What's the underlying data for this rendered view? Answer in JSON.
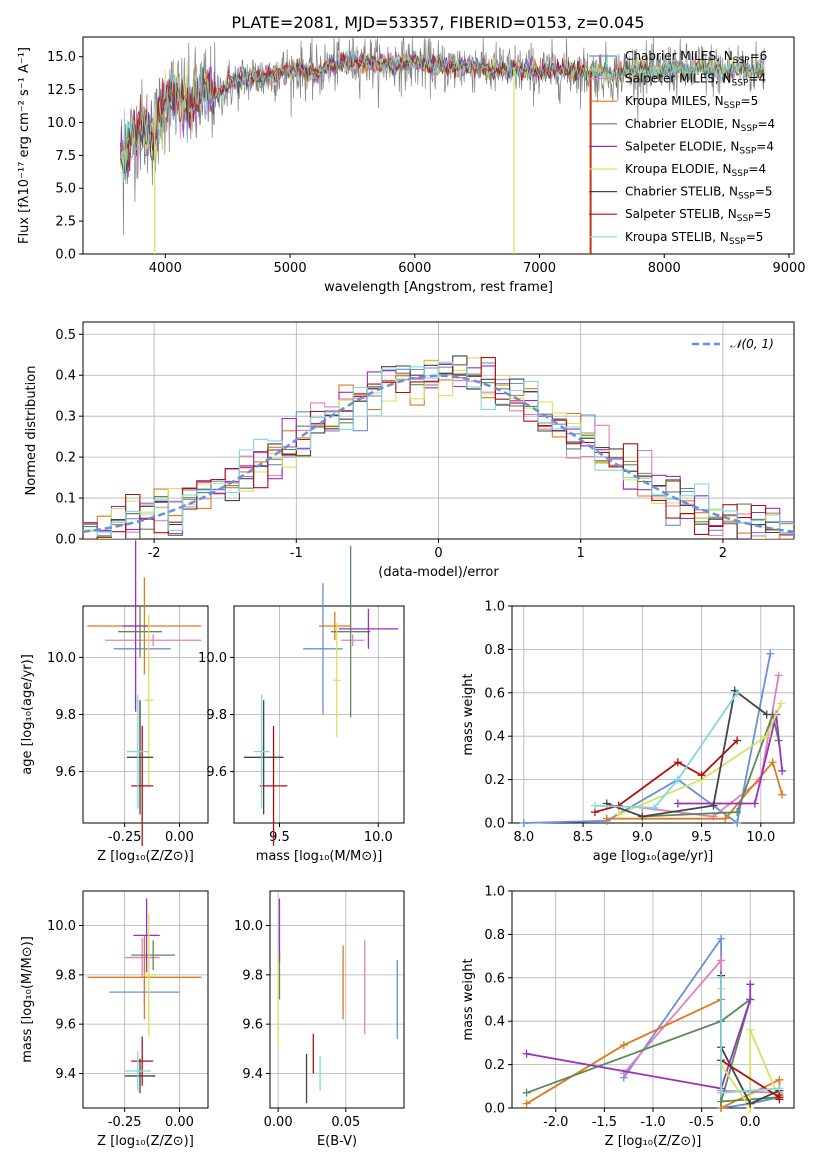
{
  "figure_title": "PLATE=2081, MJD=53357, FIBERID=0153, z=0.045",
  "colors": {
    "Chabrier MILES": "#6a8fdb",
    "Salpeter MILES": "#e27fc0",
    "Kroupa MILES": "#e07a1c",
    "Chabrier ELODIE": "#5a8a5a",
    "Salpeter ELODIE": "#9b30c0",
    "Kroupa ELODIE": "#d8e060",
    "Chabrier STELIB": "#444444",
    "Salpeter STELIB": "#b01010",
    "Kroupa STELIB": "#80d8dd"
  },
  "chart_data": [
    {
      "id": "spectrum",
      "type": "line",
      "title": "PLATE=2081, MJD=53357, FIBERID=0153, z=0.045",
      "xlabel": "wavelength [Angstrom, rest frame]",
      "ylabel": "Flux [fλ10⁻¹⁷ erg cm⁻² s⁻¹ A⁻¹]",
      "xlim": [
        3340,
        9040
      ],
      "ylim": [
        0,
        16.5
      ],
      "xticks": [
        4000,
        5000,
        6000,
        7000,
        8000,
        9000
      ],
      "yticks": [
        0.0,
        2.5,
        5.0,
        7.5,
        10.0,
        12.5,
        15.0
      ],
      "legend_position": "upper-right",
      "observed_flux": {
        "x": [
          3640,
          3700,
          3800,
          3900,
          4000,
          4100,
          4200,
          4300,
          4400,
          4500,
          4600,
          4700,
          4800,
          4900,
          5000,
          5100,
          5200,
          5300,
          5400,
          5500,
          5600,
          5700,
          5800,
          5900,
          6000,
          6100,
          6200,
          6300,
          6400,
          6500,
          6600,
          6700,
          6800,
          6900,
          7000,
          7100,
          7200,
          7300,
          7400,
          7500,
          7600,
          7700,
          7800,
          7900,
          8000,
          8100,
          8200,
          8300,
          8400,
          8500,
          8600,
          8700,
          8800
        ],
        "y": [
          7.5,
          8.2,
          9.5,
          9.0,
          11.5,
          12.0,
          11.2,
          12.5,
          12.0,
          12.8,
          13.2,
          13.5,
          13.4,
          13.8,
          13.9,
          14.0,
          13.6,
          14.3,
          14.5,
          14.6,
          14.7,
          14.5,
          14.4,
          14.6,
          14.5,
          14.4,
          14.3,
          14.2,
          14.2,
          14.4,
          14.0,
          14.1,
          14.0,
          14.0,
          13.8,
          13.9,
          14.0,
          13.9,
          13.7,
          13.8,
          13.6,
          13.9,
          14.1,
          13.7,
          14.0,
          14.1,
          13.9,
          14.2,
          14.0,
          13.9,
          14.2,
          14.0,
          14.1
        ]
      },
      "series": [
        {
          "name": "Chabrier MILES, N_SSP=6",
          "label_main": "Chabrier MILES, N",
          "label_sub": "SSP",
          "label_tail": "=6"
        },
        {
          "name": "Salpeter MILES, N_SSP=4",
          "label_main": "Salpeter MILES, N",
          "label_sub": "SSP",
          "label_tail": "=4"
        },
        {
          "name": "Kroupa MILES, N_SSP=5",
          "label_main": "Kroupa MILES, N",
          "label_sub": "SSP",
          "label_tail": "=5"
        },
        {
          "name": "Chabrier ELODIE, N_SSP=4",
          "label_main": "Chabrier ELODIE, N",
          "label_sub": "SSP",
          "label_tail": "=4"
        },
        {
          "name": "Salpeter ELODIE, N_SSP=4",
          "label_main": "Salpeter ELODIE, N",
          "label_sub": "SSP",
          "label_tail": "=4"
        },
        {
          "name": "Kroupa ELODIE, N_SSP=4",
          "label_main": "Kroupa ELODIE, N",
          "label_sub": "SSP",
          "label_tail": "=4"
        },
        {
          "name": "Chabrier STELIB, N_SSP=5",
          "label_main": "Chabrier STELIB, N",
          "label_sub": "SSP",
          "label_tail": "=5"
        },
        {
          "name": "Salpeter STELIB, N_SSP=5",
          "label_main": "Salpeter STELIB, N",
          "label_sub": "SSP",
          "label_tail": "=5"
        },
        {
          "name": "Kroupa STELIB, N_SSP=5",
          "label_main": "Kroupa STELIB, N",
          "label_sub": "SSP",
          "label_tail": "=5"
        }
      ]
    },
    {
      "id": "residuals",
      "type": "line",
      "xlabel": "(data-model)/error",
      "ylabel": "Normed distribution",
      "xlim": [
        -2.5,
        2.5
      ],
      "ylim": [
        0,
        0.53
      ],
      "xticks": [
        -2,
        -1,
        0,
        1,
        2
      ],
      "yticks": [
        0.0,
        0.1,
        0.2,
        0.3,
        0.4,
        0.5
      ],
      "grid": true,
      "legend_position": "upper-right",
      "reference_curve": {
        "name": "N(0,1)",
        "label": "𝒩(0, 1)",
        "mean": 0,
        "sigma": 1
      },
      "histogram": {
        "bin_width": 0.1,
        "range": [
          -2.5,
          2.5
        ]
      }
    },
    {
      "id": "age_vs_Z",
      "type": "scatter",
      "xlabel": "Z [log₁₀(Z/Z⊙)]",
      "ylabel": "age  [log₁₀(age/yr)]",
      "xlim": [
        -0.44,
        0.13
      ],
      "ylim": [
        9.42,
        10.18
      ],
      "xticks": [
        -0.25,
        0.0
      ],
      "yticks": [
        9.6,
        9.8,
        10.0
      ],
      "grid": true,
      "points": [
        {
          "series": "Chabrier MILES",
          "x": -0.17,
          "y": 10.03,
          "xerr": 0.13,
          "yerr": 0.0
        },
        {
          "series": "Salpeter MILES",
          "x": -0.12,
          "y": 10.06,
          "xerr": 0.22,
          "yerr": 0.02
        },
        {
          "series": "Kroupa MILES",
          "x": -0.16,
          "y": 10.11,
          "xerr": 0.26,
          "yerr": 0.17
        },
        {
          "series": "Chabrier ELODIE",
          "x": -0.18,
          "y": 10.09,
          "xerr": 0.1,
          "yerr": 0.09
        },
        {
          "series": "Salpeter ELODIE",
          "x": -0.2,
          "y": 10.11,
          "xerr": 0.06,
          "yerr": 0.3
        },
        {
          "series": "Kroupa ELODIE",
          "x": -0.14,
          "y": 9.85,
          "xerr": 0.02,
          "yerr": 0.3
        },
        {
          "series": "Chabrier STELIB",
          "x": -0.18,
          "y": 9.65,
          "xerr": 0.06,
          "yerr": 0.2
        },
        {
          "series": "Salpeter STELIB",
          "x": -0.17,
          "y": 9.55,
          "xerr": 0.05,
          "yerr": 0.21
        },
        {
          "series": "Kroupa STELIB",
          "x": -0.19,
          "y": 9.67,
          "xerr": 0.05,
          "yerr": 0.2
        }
      ]
    },
    {
      "id": "age_vs_mass",
      "type": "scatter",
      "xlabel": "mass [log₁₀(M/M⊙)]",
      "ylabel": "",
      "xlim": [
        9.27,
        10.13
      ],
      "ylim": [
        9.42,
        10.18
      ],
      "xticks": [
        9.5,
        10.0
      ],
      "yticks": [
        9.6,
        9.8,
        10.0
      ],
      "grid": true,
      "points": [
        {
          "series": "Chabrier MILES",
          "x": 9.72,
          "y": 10.03,
          "xerr": 0.1,
          "yerr": 0.23
        },
        {
          "series": "Salpeter MILES",
          "x": 9.87,
          "y": 10.06,
          "xerr": 0.06,
          "yerr": 0.02
        },
        {
          "series": "Kroupa MILES",
          "x": 9.78,
          "y": 10.11,
          "xerr": 0.08,
          "yerr": 0.05
        },
        {
          "series": "Chabrier ELODIE",
          "x": 9.86,
          "y": 10.09,
          "xerr": 0.1,
          "yerr": 0.3
        },
        {
          "series": "Salpeter ELODIE",
          "x": 9.95,
          "y": 10.1,
          "xerr": 0.15,
          "yerr": 0.07
        },
        {
          "series": "Kroupa ELODIE",
          "x": 9.79,
          "y": 9.92,
          "xerr": 0.02,
          "yerr": 0.2
        },
        {
          "series": "Chabrier STELIB",
          "x": 9.42,
          "y": 9.65,
          "xerr": 0.1,
          "yerr": 0.2
        },
        {
          "series": "Salpeter STELIB",
          "x": 9.47,
          "y": 9.55,
          "xerr": 0.07,
          "yerr": 0.21
        },
        {
          "series": "Kroupa STELIB",
          "x": 9.41,
          "y": 9.67,
          "xerr": 0.04,
          "yerr": 0.2
        }
      ]
    },
    {
      "id": "mass_weight_vs_age",
      "type": "line",
      "xlabel": "age  [log₁₀(age/yr)]",
      "ylabel": "mass weight",
      "xlim": [
        7.9,
        10.28
      ],
      "ylim": [
        0,
        1
      ],
      "xticks": [
        8.0,
        8.5,
        9.0,
        9.5,
        10.0
      ],
      "yticks": [
        0.0,
        0.2,
        0.4,
        0.6,
        0.8,
        1.0
      ],
      "grid": true,
      "series": [
        {
          "name": "Chabrier MILES",
          "x": [
            8.0,
            8.7,
            9.3,
            9.8,
            10.08
          ],
          "y": [
            0.0,
            0.01,
            0.2,
            0.0,
            0.78
          ]
        },
        {
          "name": "Salpeter MILES",
          "x": [
            9.0,
            9.6,
            10.0,
            10.15
          ],
          "y": [
            0.07,
            0.03,
            0.2,
            0.68
          ]
        },
        {
          "name": "Kroupa MILES",
          "x": [
            8.7,
            9.7,
            10.1,
            10.18
          ],
          "y": [
            0.02,
            0.02,
            0.28,
            0.13
          ]
        },
        {
          "name": "Chabrier ELODIE",
          "x": [
            9.0,
            9.8,
            10.1,
            10.15
          ],
          "y": [
            0.03,
            0.05,
            0.5,
            0.38
          ]
        },
        {
          "name": "Salpeter ELODIE",
          "x": [
            9.3,
            9.95,
            10.13,
            10.18
          ],
          "y": [
            0.09,
            0.09,
            0.5,
            0.24
          ]
        },
        {
          "name": "Kroupa ELODIE",
          "x": [
            8.8,
            9.5,
            10.05,
            10.17
          ],
          "y": [
            0.04,
            0.2,
            0.4,
            0.55
          ]
        },
        {
          "name": "Chabrier STELIB",
          "x": [
            8.7,
            9.0,
            9.6,
            9.78,
            10.05
          ],
          "y": [
            0.09,
            0.03,
            0.08,
            0.61,
            0.5
          ]
        },
        {
          "name": "Salpeter STELIB",
          "x": [
            8.6,
            8.8,
            9.3,
            9.5,
            9.8
          ],
          "y": [
            0.05,
            0.08,
            0.28,
            0.22,
            0.38
          ]
        },
        {
          "name": "Kroupa STELIB",
          "x": [
            8.6,
            9.1,
            9.3,
            9.8
          ],
          "y": [
            0.08,
            0.07,
            0.2,
            0.6
          ]
        }
      ]
    },
    {
      "id": "mass_vs_Z",
      "type": "scatter",
      "xlabel": "Z [log₁₀(Z/Z⊙)]",
      "ylabel": "mass [log₁₀(M/M⊙)]",
      "xlim": [
        -0.44,
        0.13
      ],
      "ylim": [
        9.26,
        10.14
      ],
      "xticks": [
        -0.25,
        0.0
      ],
      "yticks": [
        9.4,
        9.6,
        9.8,
        10.0
      ],
      "grid": true,
      "points": [
        {
          "series": "Chabrier MILES",
          "x": -0.16,
          "y": 9.73,
          "xerr": 0.16,
          "yerr": 0.05
        },
        {
          "series": "Salpeter MILES",
          "x": -0.17,
          "y": 9.87,
          "xerr": 0.08,
          "yerr": 0.08
        },
        {
          "series": "Kroupa MILES",
          "x": -0.16,
          "y": 9.79,
          "xerr": 0.26,
          "yerr": 0.17
        },
        {
          "series": "Chabrier ELODIE",
          "x": -0.12,
          "y": 9.88,
          "xerr": 0.1,
          "yerr": 0.06
        },
        {
          "series": "Salpeter ELODIE",
          "x": -0.15,
          "y": 9.96,
          "xerr": 0.06,
          "yerr": 0.15
        },
        {
          "series": "Kroupa ELODIE",
          "x": -0.14,
          "y": 9.8,
          "xerr": 0.03,
          "yerr": 0.25
        },
        {
          "series": "Chabrier STELIB",
          "x": -0.18,
          "y": 9.39,
          "xerr": 0.07,
          "yerr": 0.07
        },
        {
          "series": "Salpeter STELIB",
          "x": -0.17,
          "y": 9.45,
          "xerr": 0.05,
          "yerr": 0.1
        },
        {
          "series": "Kroupa STELIB",
          "x": -0.19,
          "y": 9.41,
          "xerr": 0.06,
          "yerr": 0.08
        }
      ]
    },
    {
      "id": "mass_vs_EBV",
      "type": "scatter",
      "xlabel": "E(B-V)",
      "ylabel": "",
      "xlim": [
        -0.006,
        0.093
      ],
      "ylim": [
        9.26,
        10.14
      ],
      "xticks": [
        0.0,
        0.05
      ],
      "yticks": [
        9.4,
        9.6,
        9.8,
        10.0
      ],
      "grid": true,
      "points": [
        {
          "series": "Chabrier MILES",
          "x": 0.088,
          "y": 9.7,
          "yerr": 0.16
        },
        {
          "series": "Salpeter MILES",
          "x": 0.064,
          "y": 9.75,
          "yerr": 0.19
        },
        {
          "series": "Kroupa MILES",
          "x": 0.048,
          "y": 9.77,
          "yerr": 0.15
        },
        {
          "series": "Chabrier ELODIE",
          "x": 0.001,
          "y": 9.8,
          "yerr": 0.1
        },
        {
          "series": "Salpeter ELODIE",
          "x": 0.001,
          "y": 9.98,
          "yerr": 0.13
        },
        {
          "series": "Kroupa ELODIE",
          "x": 0.0,
          "y": 9.7,
          "yerr": 0.2
        },
        {
          "series": "Chabrier STELIB",
          "x": 0.021,
          "y": 9.38,
          "yerr": 0.1
        },
        {
          "series": "Salpeter STELIB",
          "x": 0.026,
          "y": 9.48,
          "yerr": 0.08
        },
        {
          "series": "Kroupa STELIB",
          "x": 0.031,
          "y": 9.4,
          "yerr": 0.07
        }
      ]
    },
    {
      "id": "mass_weight_vs_Z",
      "type": "line",
      "xlabel": "Z [log₁₀(Z/Z⊙)]",
      "ylabel": "mass weight",
      "xlim": [
        -2.45,
        0.45
      ],
      "ylim": [
        0,
        1
      ],
      "xticks": [
        -2.0,
        -1.5,
        -1.0,
        -0.5,
        0.0
      ],
      "yticks": [
        0.0,
        0.2,
        0.4,
        0.6,
        0.8,
        1.0
      ],
      "grid": true,
      "series": [
        {
          "name": "Chabrier MILES",
          "x": [
            -1.3,
            -0.3,
            -0.3,
            0.0,
            0.3
          ],
          "y": [
            0.14,
            0.78,
            0.0,
            0.02,
            0.05
          ]
        },
        {
          "name": "Salpeter MILES",
          "x": [
            -1.3,
            -0.3,
            -0.3,
            0.3
          ],
          "y": [
            0.16,
            0.68,
            0.08,
            0.07
          ]
        },
        {
          "name": "Kroupa MILES",
          "x": [
            -2.3,
            -1.3,
            -0.3,
            -0.3,
            0.3,
            0.3
          ],
          "y": [
            0.02,
            0.29,
            0.5,
            0.0,
            0.13,
            0.05
          ]
        },
        {
          "name": "Chabrier ELODIE",
          "x": [
            -2.3,
            -0.3,
            0.0,
            -0.3,
            0.3
          ],
          "y": [
            0.07,
            0.4,
            0.5,
            0.03,
            0.05
          ]
        },
        {
          "name": "Salpeter ELODIE",
          "x": [
            -2.3,
            -0.3,
            0.0,
            0.0
          ],
          "y": [
            0.25,
            0.09,
            0.5,
            0.57
          ]
        },
        {
          "name": "Kroupa ELODIE",
          "x": [
            -0.3,
            -0.3,
            0.0,
            0.0,
            0.3
          ],
          "y": [
            0.55,
            0.2,
            0.0,
            0.36,
            0.04
          ]
        },
        {
          "name": "Chabrier STELIB",
          "x": [
            -0.3,
            -0.3,
            0.0,
            0.3
          ],
          "y": [
            0.61,
            0.28,
            0.02,
            0.08
          ]
        },
        {
          "name": "Salpeter STELIB",
          "x": [
            -0.3,
            0.3,
            0.3,
            0.3
          ],
          "y": [
            0.22,
            0.05,
            0.06,
            0.04
          ]
        },
        {
          "name": "Kroupa STELIB",
          "x": [
            -0.3,
            -0.3,
            0.0,
            0.3
          ],
          "y": [
            0.6,
            0.07,
            0.08,
            0.09
          ]
        }
      ]
    }
  ]
}
